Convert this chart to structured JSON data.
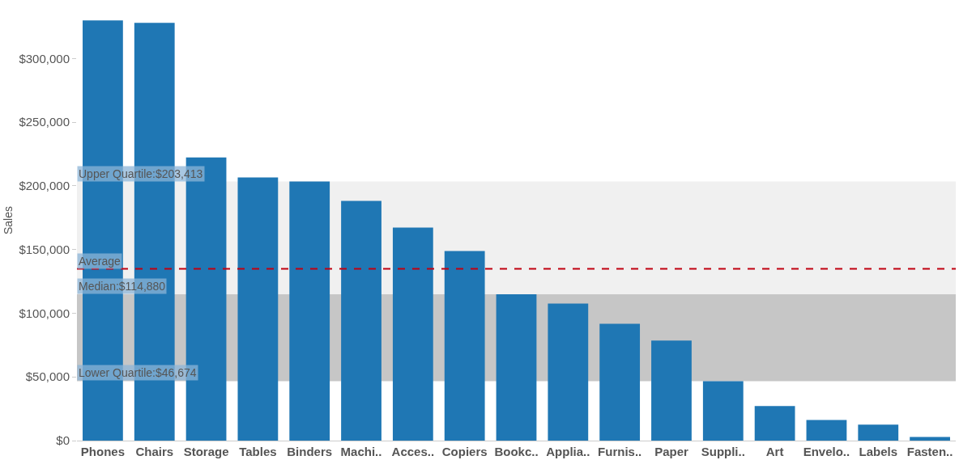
{
  "chart_data": {
    "type": "bar",
    "ylabel": "Sales",
    "categories": [
      "Phones",
      "Chairs",
      "Storage",
      "Tables",
      "Binders",
      "Machi..",
      "Acces..",
      "Copiers",
      "Bookc..",
      "Applia..",
      "Furnis..",
      "Paper",
      "Suppli..",
      "Art",
      "Envelo..",
      "Labels",
      "Fasten.."
    ],
    "values": [
      330000,
      328000,
      222300,
      206700,
      203400,
      188200,
      167300,
      148800,
      114900,
      107600,
      91700,
      78500,
      46700,
      27100,
      16200,
      12500,
      2900
    ],
    "color": "#1f77b4",
    "ylim": [
      0,
      346000
    ],
    "yticks": [
      {
        "value": 0,
        "label": "$0"
      },
      {
        "value": 50000,
        "label": "$50,000"
      },
      {
        "value": 100000,
        "label": "$100,000"
      },
      {
        "value": 150000,
        "label": "$150,000"
      },
      {
        "value": 200000,
        "label": "$200,000"
      },
      {
        "value": 250000,
        "label": "$250,000"
      },
      {
        "value": 300000,
        "label": "$300,000"
      }
    ],
    "bands": [
      {
        "axis": "y",
        "from": 114880,
        "to": 203413,
        "color": "#f0f0f0"
      },
      {
        "axis": "y",
        "from": 46674,
        "to": 114880,
        "color": "#c6c6c6"
      }
    ],
    "ref_lines": [
      {
        "axis": "y",
        "value": 134900,
        "label": "Average",
        "color": "#c00010",
        "line_style": "dashed"
      }
    ],
    "annotations": [
      {
        "text": "Upper Quartile:$203,413",
        "y": 203413
      },
      {
        "text": "Median:$114,880",
        "y": 114880
      },
      {
        "text": "Lower Quartile:$46,674",
        "y": 46674
      }
    ],
    "grid": false
  }
}
